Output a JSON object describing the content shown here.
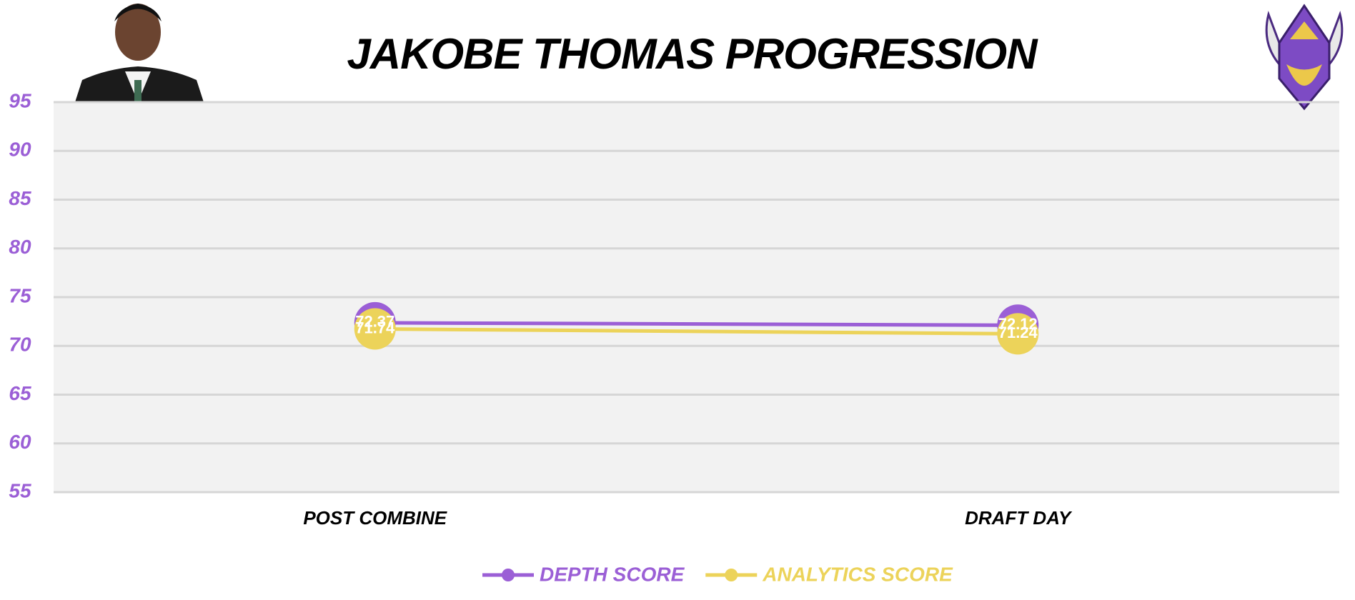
{
  "chart_data": {
    "type": "line",
    "title": "JAKOBE THOMAS PROGRESSION",
    "categories": [
      "POST COMBINE",
      "DRAFT DAY"
    ],
    "series": [
      {
        "name": "DEPTH SCORE",
        "color": "#9b5fd6",
        "values": [
          72.37,
          72.12
        ]
      },
      {
        "name": "ANALYTICS SCORE",
        "color": "#ecd35a",
        "values": [
          71.74,
          71.24
        ]
      }
    ],
    "ylim": [
      55,
      95
    ],
    "yticks": [
      55,
      60,
      65,
      70,
      75,
      80,
      85,
      90,
      95
    ],
    "grid": true,
    "tick_color": "#9b5fd6"
  }
}
